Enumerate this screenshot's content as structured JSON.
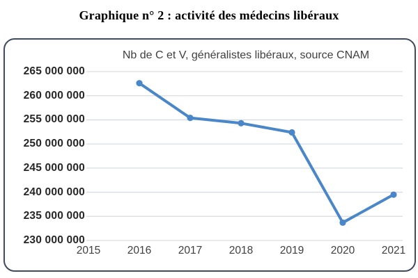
{
  "page": {
    "title": "Graphique n° 2 : activité des médecins libéraux"
  },
  "chart_data": {
    "type": "line",
    "title": "Nb de C et V, généralistes libéraux, source CNAM",
    "x": [
      2016,
      2017,
      2018,
      2019,
      2020,
      2021
    ],
    "series": [
      {
        "name": "Nb de C et V",
        "values": [
          262600000,
          255400000,
          254300000,
          252400000,
          233700000,
          239500000
        ]
      }
    ],
    "xtick_labels": [
      "2015",
      "2016",
      "2017",
      "2018",
      "2019",
      "2020",
      "2021"
    ],
    "ytick_values": [
      230000000,
      235000000,
      240000000,
      245000000,
      250000000,
      255000000,
      260000000,
      265000000
    ],
    "ytick_labels": [
      "230 000 000",
      "235 000 000",
      "240 000 000",
      "245 000 000",
      "250 000 000",
      "255 000 000",
      "260 000 000",
      "265 000 000"
    ],
    "ylim": [
      230000000,
      265000000
    ],
    "grid": true,
    "legend_position": "none",
    "line_color": "#4a87c8",
    "gridline_color": "#d7dce3",
    "frame_color": "#3d4a61"
  }
}
